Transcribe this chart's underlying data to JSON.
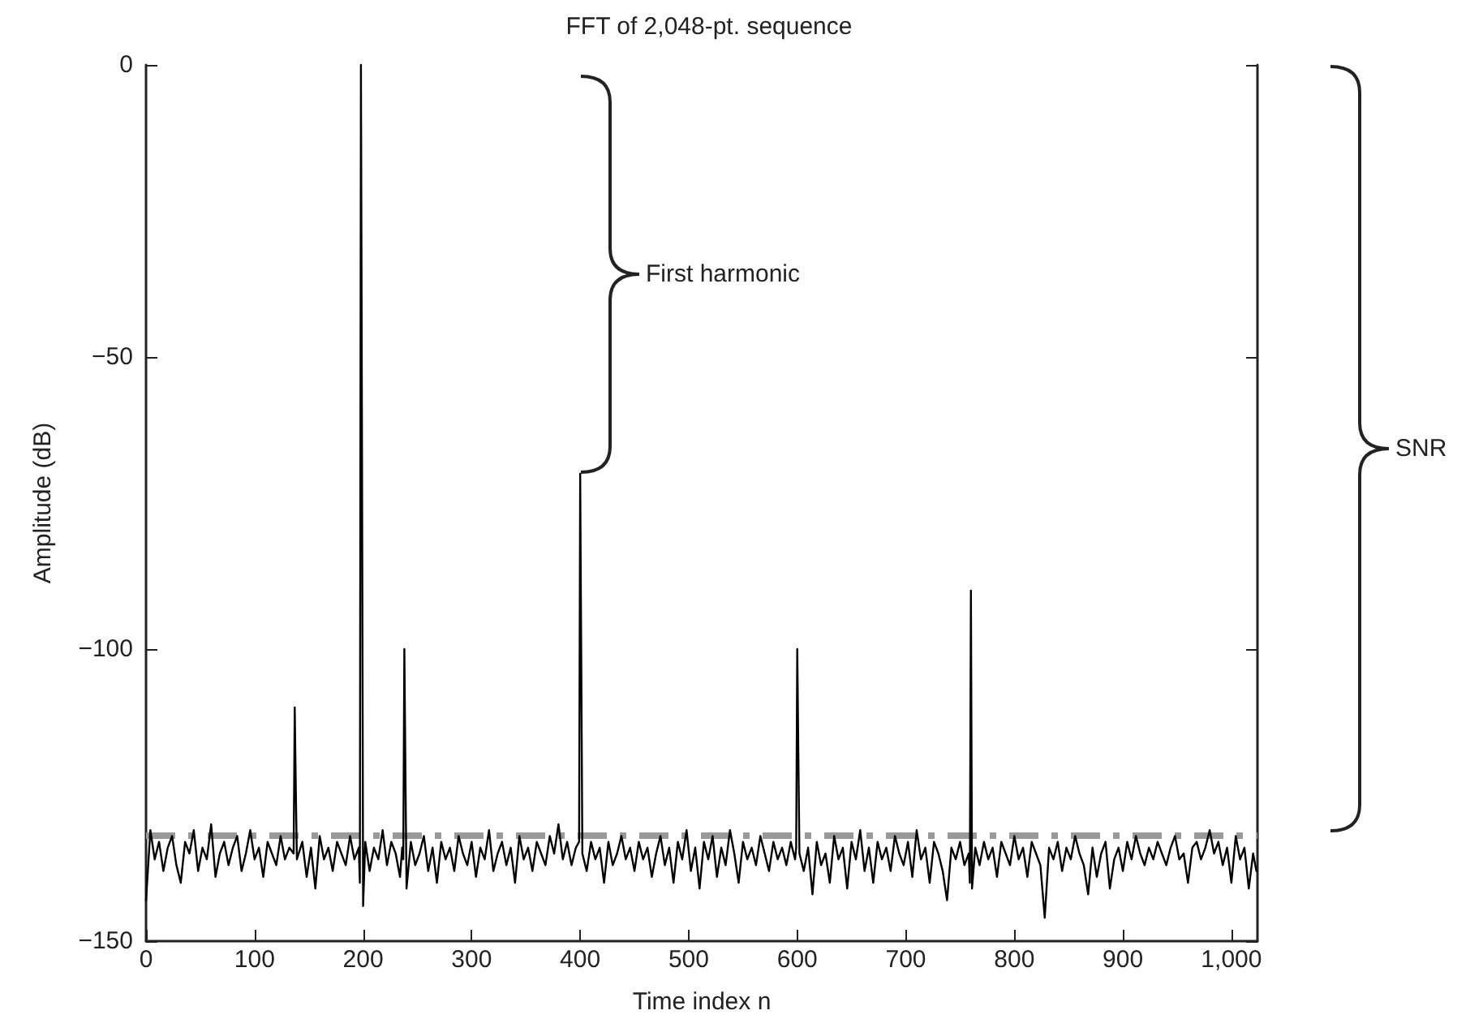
{
  "chart_data": {
    "type": "line",
    "title": "FFT of 2,048-pt. sequence",
    "xlabel": "Time index n",
    "ylabel": "Amplitude (dB)",
    "xlim": [
      0,
      1024
    ],
    "xticks": [
      0,
      100,
      200,
      300,
      400,
      500,
      600,
      700,
      800,
      900,
      {
        "value": 1000,
        "label": "1,000"
      }
    ],
    "ylim": [
      -150,
      0
    ],
    "yticks": [
      {
        "value": -150,
        "label": "−150"
      },
      {
        "value": -100,
        "label": "−100"
      },
      {
        "value": -50,
        "label": "−50"
      },
      0
    ],
    "grid": false,
    "marker": "none",
    "line_style": "solid",
    "annotations": [
      "First harmonic",
      "SNR"
    ],
    "ref_lines": [
      {
        "axis": "y",
        "value": -132,
        "color": "#999999",
        "line_style": "dashed"
      }
    ],
    "series": [
      {
        "color": "#000000",
        "x": [
          0,
          4,
          8,
          12,
          16,
          20,
          24,
          28,
          32,
          36,
          40,
          44,
          48,
          52,
          56,
          60,
          64,
          68,
          72,
          76,
          80,
          84,
          88,
          92,
          96,
          100,
          104,
          108,
          112,
          116,
          120,
          124,
          128,
          132,
          136,
          137,
          138,
          139,
          144,
          148,
          152,
          156,
          160,
          164,
          168,
          172,
          176,
          180,
          184,
          188,
          192,
          196,
          197,
          198,
          199,
          200,
          202,
          206,
          210,
          214,
          218,
          222,
          226,
          230,
          234,
          236,
          237,
          238,
          239,
          240,
          244,
          248,
          252,
          256,
          260,
          264,
          268,
          272,
          276,
          280,
          284,
          288,
          292,
          296,
          300,
          304,
          308,
          312,
          316,
          320,
          324,
          328,
          332,
          336,
          340,
          344,
          348,
          352,
          356,
          360,
          364,
          368,
          372,
          376,
          380,
          384,
          388,
          392,
          396,
          399,
          400,
          401,
          402,
          406,
          410,
          414,
          418,
          422,
          426,
          430,
          434,
          438,
          442,
          446,
          450,
          454,
          458,
          462,
          466,
          470,
          474,
          478,
          482,
          486,
          490,
          494,
          498,
          502,
          506,
          510,
          514,
          518,
          522,
          526,
          530,
          534,
          538,
          542,
          546,
          550,
          554,
          558,
          562,
          566,
          570,
          574,
          578,
          582,
          586,
          590,
          594,
          598,
          599,
          600,
          601,
          602,
          606,
          610,
          614,
          618,
          622,
          626,
          630,
          634,
          638,
          642,
          646,
          650,
          654,
          658,
          662,
          666,
          670,
          674,
          678,
          682,
          686,
          690,
          694,
          698,
          702,
          706,
          710,
          714,
          718,
          722,
          726,
          730,
          734,
          738,
          742,
          746,
          750,
          754,
          758,
          759,
          760,
          761,
          764,
          768,
          772,
          776,
          780,
          784,
          788,
          792,
          796,
          800,
          804,
          808,
          812,
          816,
          820,
          824,
          828,
          832,
          836,
          840,
          844,
          848,
          852,
          856,
          860,
          864,
          868,
          872,
          876,
          880,
          884,
          888,
          892,
          896,
          900,
          904,
          908,
          912,
          916,
          920,
          924,
          928,
          932,
          936,
          940,
          944,
          948,
          952,
          956,
          960,
          964,
          968,
          972,
          976,
          980,
          984,
          988,
          992,
          996,
          1000,
          1004,
          1008,
          1012,
          1016,
          1020,
          1023
        ],
        "values": [
          -143,
          -131,
          -136,
          -133,
          -138,
          -134,
          -132,
          -137,
          -140,
          -133,
          -135,
          -131,
          -138,
          -134,
          -136,
          -130,
          -139,
          -135,
          -133,
          -137,
          -134,
          -132,
          -138,
          -135,
          -131,
          -136,
          -134,
          -139,
          -133,
          -135,
          -137,
          -132,
          -136,
          -134,
          -135,
          -110,
          -124,
          -136,
          -133,
          -139,
          -134,
          -141,
          -132,
          -136,
          -134,
          -138,
          -133,
          -135,
          -137,
          -132,
          -136,
          -134,
          -140,
          0,
          -67,
          -144,
          -133,
          -138,
          -134,
          -136,
          -131,
          -137,
          -133,
          -135,
          -139,
          -134,
          -136,
          -100,
          -121,
          -141,
          -133,
          -137,
          -135,
          -132,
          -138,
          -134,
          -140,
          -133,
          -136,
          -134,
          -138,
          -132,
          -135,
          -137,
          -133,
          -139,
          -134,
          -136,
          -131,
          -138,
          -135,
          -133,
          -137,
          -134,
          -140,
          -132,
          -136,
          -134,
          -138,
          -133,
          -135,
          -137,
          -132,
          -135,
          -130,
          -136,
          -133,
          -137,
          -134,
          -133,
          -70,
          -102,
          -135,
          -138,
          -133,
          -136,
          -134,
          -140,
          -133,
          -137,
          -135,
          -132,
          -136,
          -134,
          -138,
          -133,
          -136,
          -134,
          -139,
          -135,
          -132,
          -137,
          -134,
          -140,
          -133,
          -136,
          -131,
          -138,
          -134,
          -141,
          -133,
          -136,
          -132,
          -139,
          -134,
          -137,
          -131,
          -135,
          -140,
          -133,
          -136,
          -134,
          -137,
          -132,
          -135,
          -138,
          -133,
          -136,
          -134,
          -137,
          -133,
          -136,
          -134,
          -100,
          -118,
          -135,
          -138,
          -134,
          -142,
          -133,
          -137,
          -135,
          -140,
          -132,
          -136,
          -134,
          -141,
          -133,
          -136,
          -131,
          -138,
          -134,
          -140,
          -133,
          -136,
          -134,
          -138,
          -132,
          -135,
          -137,
          -133,
          -139,
          -131,
          -136,
          -134,
          -140,
          -133,
          -135,
          -138,
          -143,
          -134,
          -136,
          -133,
          -137,
          -135,
          -140,
          -90,
          -141,
          -134,
          -137,
          -133,
          -136,
          -134,
          -139,
          -133,
          -135,
          -137,
          -132,
          -136,
          -134,
          -139,
          -133,
          -135,
          -137,
          -146,
          -134,
          -136,
          -133,
          -138,
          -134,
          -136,
          -132,
          -135,
          -137,
          -142,
          -134,
          -139,
          -135,
          -133,
          -141,
          -136,
          -134,
          -138,
          -133,
          -136,
          -132,
          -135,
          -137,
          -134,
          -136,
          -133,
          -135,
          -137,
          -134,
          -132,
          -136,
          -135,
          -140,
          -134,
          -133,
          -136,
          -134,
          -131,
          -135,
          -133,
          -137,
          -134,
          -140,
          -132,
          -136,
          -134,
          -141,
          -135,
          -138
        ]
      }
    ]
  }
}
